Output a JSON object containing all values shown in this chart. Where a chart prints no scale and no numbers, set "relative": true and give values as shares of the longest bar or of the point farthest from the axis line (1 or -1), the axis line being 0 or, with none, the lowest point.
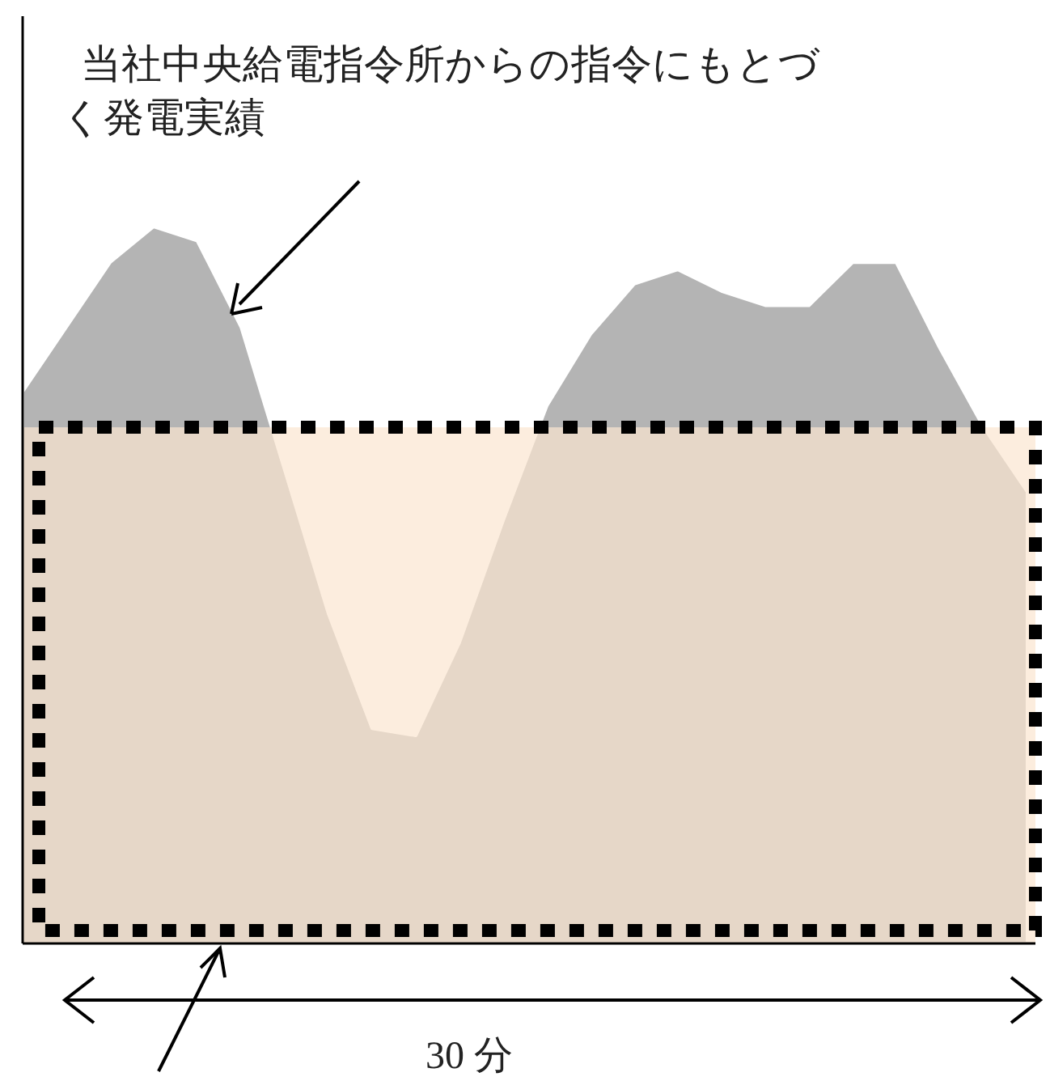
{
  "chart_data": {
    "type": "area",
    "relative": true,
    "categories": [
      null,
      null,
      null,
      null,
      null,
      null,
      null,
      null,
      null,
      null,
      null,
      null,
      null,
      null,
      null,
      null,
      null,
      null,
      null,
      null,
      null,
      null,
      null,
      null
    ],
    "values": [
      0.77,
      0.86,
      0.95,
      1.0,
      0.98,
      0.86,
      0.66,
      0.46,
      0.3,
      0.29,
      0.42,
      0.59,
      0.75,
      0.85,
      0.92,
      0.94,
      0.91,
      0.89,
      0.89,
      0.95,
      0.95,
      0.83,
      0.72,
      0.63
    ],
    "color": "#b4b4b4",
    "bands": [
      {
        "axis": "y",
        "from": 0,
        "to": 0.72,
        "color": "#fbe6d0"
      }
    ],
    "annotations": [
      "当社中央給電指令所からの指令にもとづく発電実績",
      "30 分"
    ]
  }
}
